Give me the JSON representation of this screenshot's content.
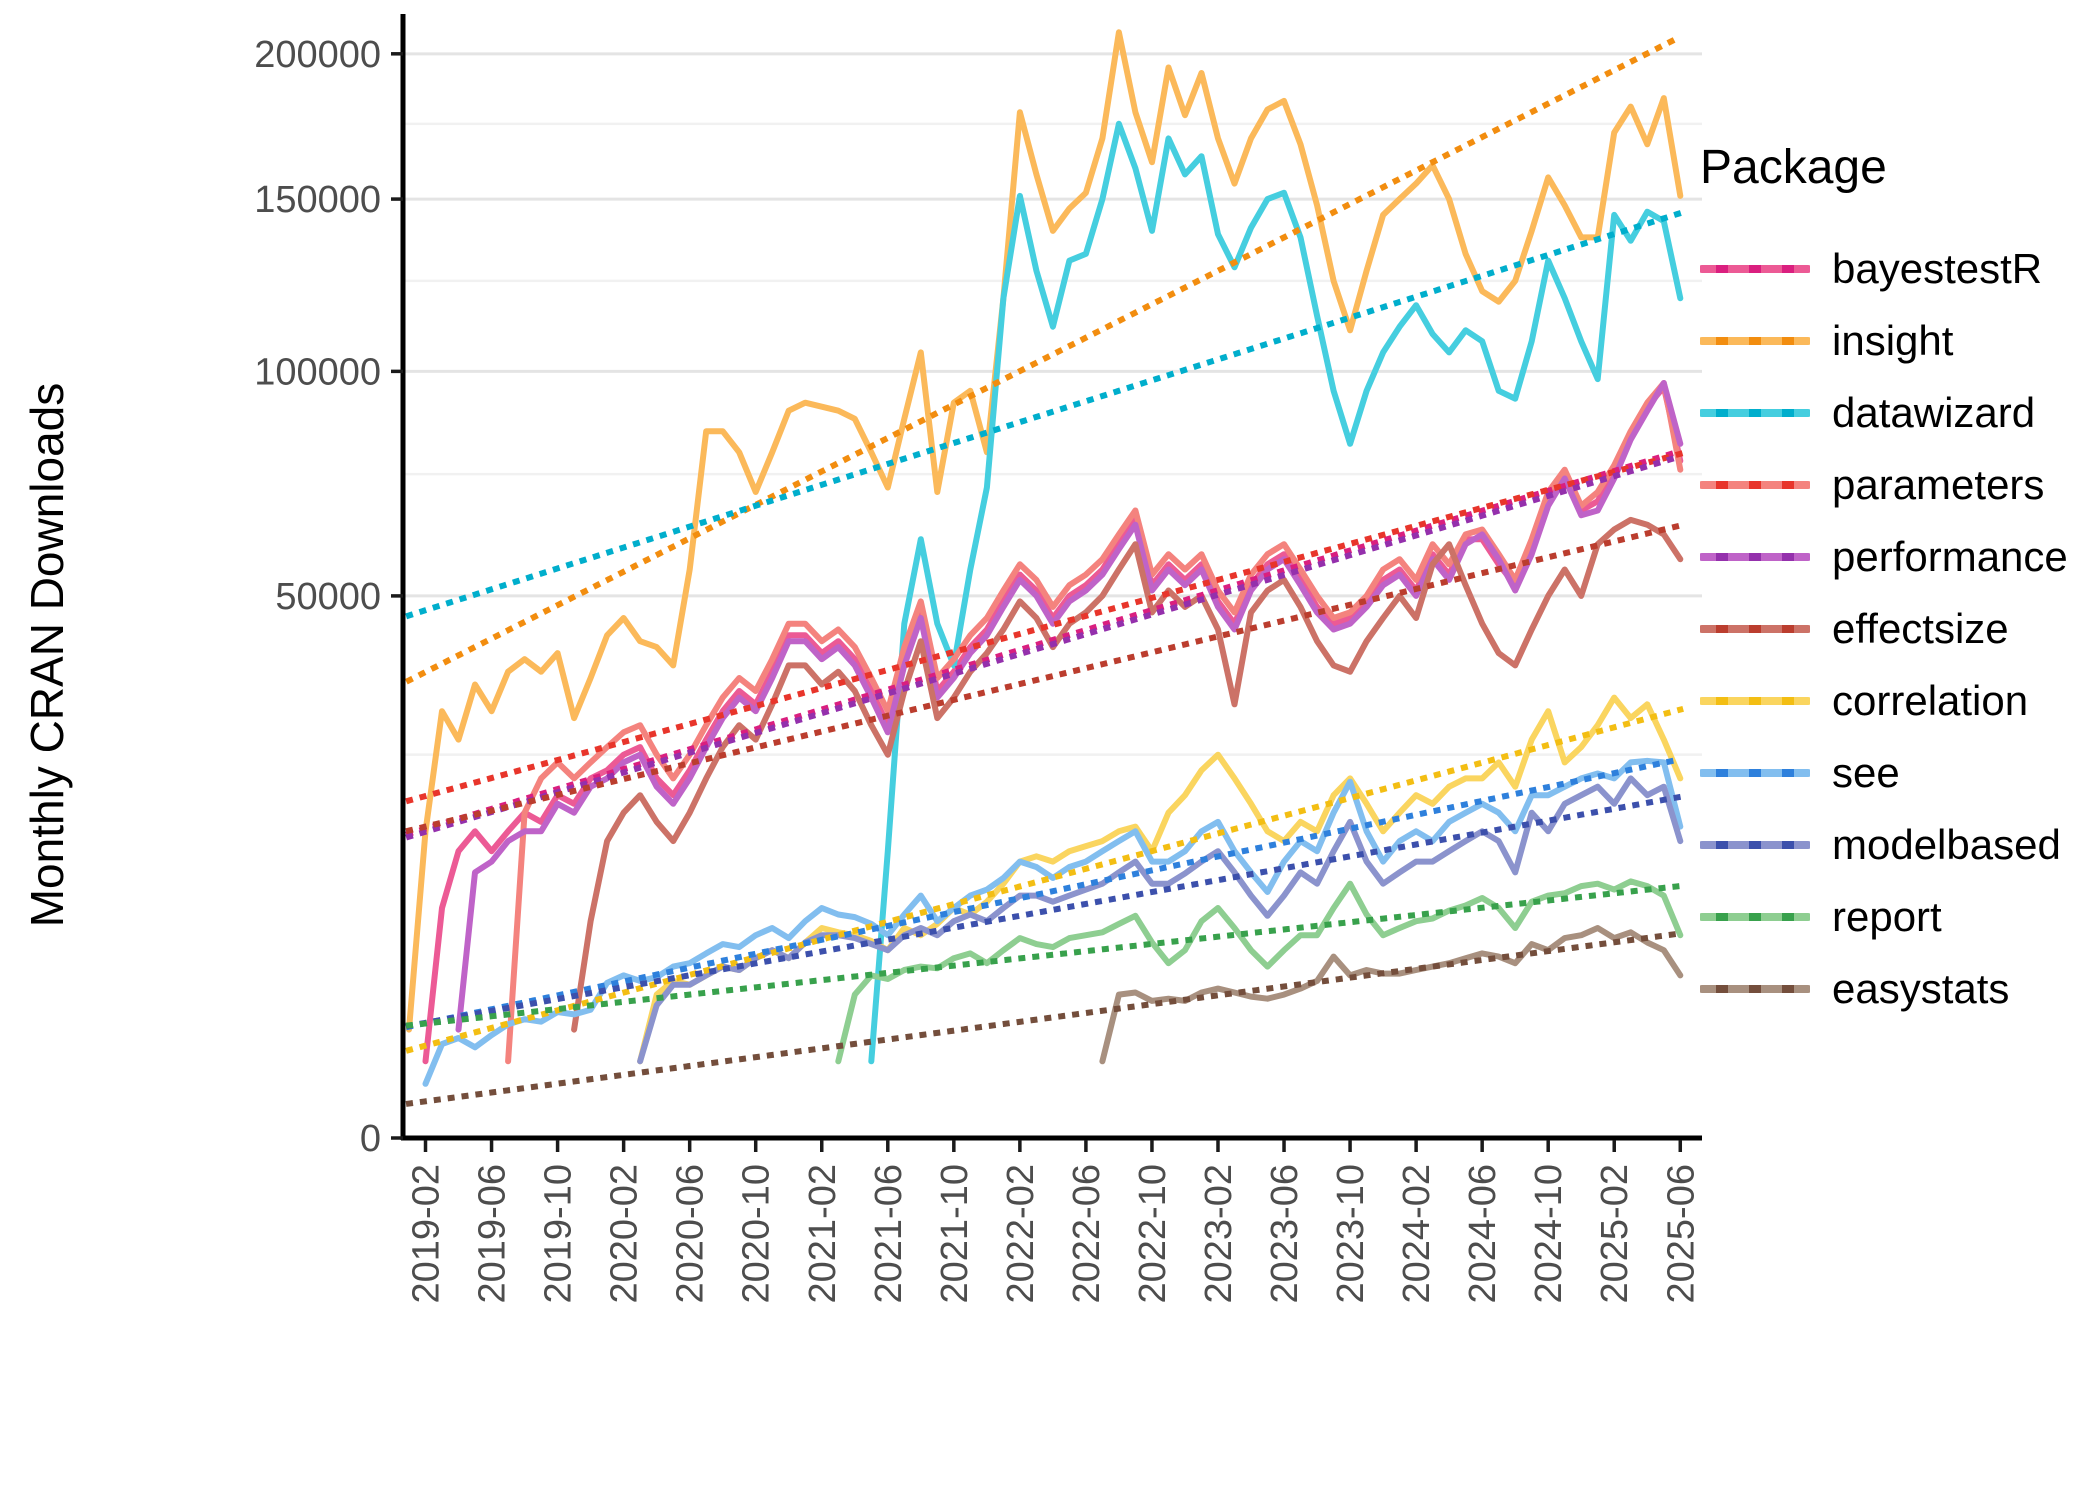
{
  "y_axis_title": "Monthly CRAN Downloads",
  "legend": {
    "title": "Package"
  },
  "chart_data": {
    "type": "line",
    "title": "",
    "xlabel": "",
    "ylabel": "Monthly CRAN Downloads",
    "x_start_month": "2019-01",
    "x_end_month": "2025-06",
    "months_total": 78,
    "y_scale": "sqrt",
    "y_ticks": [
      0,
      50000,
      100000,
      150000,
      200000
    ],
    "y_minor_ticks": [
      25000,
      75000,
      125000,
      175000
    ],
    "y_max_display": 215000,
    "x_tick_labels": [
      "2019-02",
      "2019-06",
      "2019-10",
      "2020-02",
      "2020-06",
      "2020-10",
      "2021-02",
      "2021-06",
      "2021-10",
      "2022-02",
      "2022-06",
      "2022-10",
      "2023-02",
      "2023-06",
      "2023-10",
      "2024-02",
      "2024-06",
      "2024-10",
      "2025-02",
      "2025-06"
    ],
    "x_tick_month_indices": [
      1,
      5,
      9,
      13,
      17,
      21,
      25,
      29,
      33,
      37,
      41,
      45,
      49,
      53,
      57,
      61,
      65,
      69,
      73,
      77
    ],
    "grid_color_major": "#e4e4e4",
    "grid_color_minor": "#f1f1f1",
    "axis_color": "#000000",
    "tick_label_color": "#4d4d4d",
    "note": "values_thousands are monthly download counts in thousands starting at start_month_index (0 = 2019-01); dotted trend lines are linear fits on the sqrt scale drawn over the full x range",
    "series": [
      {
        "name": "bayestestR",
        "color": "#EC5A95",
        "trend_color": "#DA1F7F",
        "start_month_index": 1,
        "values_thousands": [
          1,
          9,
          14,
          16,
          14,
          16,
          18,
          17,
          20,
          19,
          22,
          23,
          25,
          26,
          22,
          20,
          23,
          27,
          31,
          34,
          32,
          37,
          43,
          43,
          40,
          42,
          39,
          34,
          29,
          39,
          47,
          34,
          37,
          41,
          44,
          49,
          54,
          51,
          46,
          50,
          52,
          55,
          60,
          65,
          52,
          56,
          53,
          56,
          49,
          45,
          52,
          56,
          58,
          53,
          48,
          45,
          46,
          49,
          53,
          55,
          51,
          58,
          54,
          61,
          61,
          56,
          52,
          59,
          69,
          75,
          67,
          69,
          76,
          84,
          91,
          96,
          78
        ]
      },
      {
        "name": "insight",
        "color": "#FBB95A",
        "trend_color": "#F28D0F",
        "start_month_index": 0,
        "values_thousands": [
          2,
          16,
          31,
          27,
          35,
          31,
          37,
          39,
          37,
          40,
          30,
          36,
          43,
          46,
          42,
          41,
          38,
          55,
          85,
          85,
          80,
          71,
          80,
          90,
          92,
          91,
          90,
          88,
          80,
          72,
          88,
          105,
          71,
          92,
          95,
          80,
          120,
          179,
          158,
          140,
          147,
          152,
          170,
          208,
          179,
          162,
          195,
          178,
          193,
          170,
          155,
          170,
          180,
          183,
          168,
          148,
          125,
          111,
          128,
          145,
          150,
          155,
          161,
          150,
          133,
          122,
          119,
          125,
          140,
          157,
          148,
          138,
          138,
          172,
          181,
          168,
          184,
          151
        ]
      },
      {
        "name": "datawizard",
        "color": "#45CEDF",
        "trend_color": "#00AECC",
        "start_month_index": 28,
        "values_thousands": [
          1,
          14,
          45,
          61,
          45,
          38,
          55,
          72,
          120,
          151,
          128,
          112,
          131,
          133,
          150,
          175,
          160,
          140,
          170,
          158,
          164,
          139,
          129,
          141,
          150,
          152,
          138,
          115,
          95,
          82,
          95,
          105,
          112,
          118,
          110,
          105,
          111,
          108,
          95,
          93,
          108,
          131,
          120,
          108,
          98,
          145,
          137,
          146,
          143,
          120
        ]
      },
      {
        "name": "parameters",
        "color": "#F4837E",
        "trend_color": "#E8352B",
        "start_month_index": 6,
        "values_thousands": [
          1,
          18,
          22,
          24,
          22,
          24,
          26,
          28,
          29,
          25,
          22,
          25,
          29,
          33,
          36,
          34,
          39,
          45,
          45,
          42,
          44,
          41,
          36,
          31,
          41,
          49,
          36,
          39,
          43,
          46,
          51,
          56,
          53,
          48,
          52,
          54,
          57,
          62,
          67,
          54,
          58,
          55,
          58,
          51,
          47,
          54,
          58,
          60,
          55,
          50,
          46,
          47,
          50,
          55,
          57,
          53,
          60,
          56,
          62,
          63,
          58,
          53,
          61,
          71,
          76,
          68,
          71,
          77,
          85,
          92,
          97,
          76
        ]
      },
      {
        "name": "performance",
        "color": "#BF63C8",
        "trend_color": "#9430AC",
        "start_month_index": 3,
        "values_thousands": [
          2,
          12,
          13,
          15,
          16,
          16,
          19,
          18,
          21,
          22,
          24,
          25,
          21,
          19,
          22,
          26,
          30,
          33,
          31,
          36,
          42,
          42,
          39,
          41,
          38,
          33,
          28,
          38,
          46,
          33,
          36,
          40,
          43,
          48,
          53,
          50,
          45,
          49,
          51,
          54,
          59,
          64,
          51,
          55,
          52,
          55,
          48,
          44,
          51,
          55,
          57,
          52,
          47,
          44,
          45,
          48,
          52,
          54,
          50,
          57,
          53,
          60,
          62,
          57,
          51,
          58,
          68,
          74,
          66,
          67,
          74,
          83,
          90,
          97,
          82
        ]
      },
      {
        "name": "effectsize",
        "color": "#CC7267",
        "trend_color": "#BB3D2E",
        "start_month_index": 10,
        "values_thousands": [
          2,
          8,
          15,
          18,
          20,
          17,
          15,
          18,
          22,
          26,
          29,
          27,
          32,
          38,
          38,
          35,
          37,
          34,
          29,
          25,
          34,
          42,
          30,
          33,
          37,
          40,
          44,
          49,
          46,
          41,
          45,
          47,
          50,
          55,
          60,
          47,
          51,
          48,
          50,
          44,
          32,
          47,
          51,
          53,
          48,
          42,
          38,
          37,
          42,
          46,
          50,
          46,
          56,
          60,
          52,
          45,
          40,
          38,
          44,
          50,
          55,
          50,
          60,
          63,
          65,
          64,
          62,
          57
        ]
      },
      {
        "name": "correlation",
        "color": "#FAD55F",
        "trend_color": "#F3BE13",
        "start_month_index": 14,
        "values_thousands": [
          1,
          3.5,
          4.2,
          4,
          4.5,
          5,
          4.8,
          5.5,
          6,
          5.5,
          6.5,
          7.5,
          7.2,
          7,
          6.6,
          6,
          7.5,
          7,
          7.8,
          9,
          8.5,
          9.5,
          11,
          13,
          13.5,
          13,
          14,
          14.5,
          15,
          16,
          16.5,
          14,
          18,
          20,
          23,
          25,
          22,
          19,
          16,
          15,
          17,
          16,
          20,
          22,
          19,
          16,
          18,
          20,
          19,
          21,
          22,
          22,
          24,
          21,
          27,
          31,
          24,
          26,
          29,
          33,
          30,
          32,
          27,
          22
        ]
      },
      {
        "name": "see",
        "color": "#82BEEF",
        "trend_color": "#2E80DC",
        "start_month_index": 1,
        "values_thousands": [
          0.5,
          1.5,
          1.7,
          1.4,
          1.8,
          2.2,
          2.4,
          2.3,
          2.7,
          2.6,
          2.8,
          4.1,
          4.5,
          4.2,
          4.4,
          5,
          5.2,
          5.8,
          6.4,
          6.2,
          7,
          7.5,
          6.8,
          8,
          9,
          8.5,
          8.3,
          7.8,
          7,
          8.5,
          10,
          8,
          9,
          10,
          10.5,
          11.5,
          13,
          12.5,
          11.5,
          12.5,
          13,
          14,
          15,
          16,
          13,
          13,
          14,
          16,
          17,
          14,
          12,
          10.3,
          13,
          15,
          14,
          18,
          21.6,
          16,
          13,
          15,
          16,
          15,
          17,
          18,
          19,
          18,
          16,
          20,
          20,
          21,
          22,
          22.6,
          22,
          24,
          24.2,
          24,
          16.5
        ]
      },
      {
        "name": "modelbased",
        "color": "#8B93CD",
        "trend_color": "#3C50AC",
        "start_month_index": 14,
        "values_thousands": [
          1,
          3,
          4,
          4,
          4.5,
          5,
          4.8,
          5.5,
          6,
          5.5,
          6.5,
          7,
          7,
          6.8,
          6.4,
          6,
          7,
          7.5,
          7,
          8,
          8.5,
          8,
          9,
          10,
          10,
          9.5,
          10,
          10.5,
          11,
          12,
          13,
          11,
          11,
          11.9,
          13,
          14,
          12,
          10,
          8.4,
          10,
          12,
          11,
          14,
          17,
          13,
          11,
          12,
          13,
          13,
          14,
          15,
          16,
          15,
          12,
          18,
          16,
          19,
          20,
          21,
          19,
          22,
          20,
          21,
          15
        ]
      },
      {
        "name": "report",
        "color": "#8ECE91",
        "trend_color": "#38A14C",
        "start_month_index": 26,
        "values_thousands": [
          1,
          3.5,
          4.5,
          4.3,
          4.8,
          5,
          4.9,
          5.5,
          5.8,
          5.2,
          6,
          6.8,
          6.4,
          6.2,
          6.8,
          7,
          7.2,
          7.8,
          8.4,
          6.5,
          5.2,
          6,
          8,
          9,
          7.5,
          6,
          5,
          6,
          7,
          7,
          9,
          11,
          8.5,
          7,
          7.5,
          8,
          8.2,
          8.8,
          9.2,
          9.8,
          9,
          7.5,
          9.5,
          10,
          10.2,
          10.8,
          11,
          10.5,
          11.2,
          10.8,
          10,
          7
        ]
      },
      {
        "name": "easystats",
        "color": "#A8907F",
        "trend_color": "#744E3C",
        "start_month_index": 42,
        "values_thousands": [
          1,
          3.5,
          3.6,
          3.2,
          3.3,
          3.2,
          3.6,
          3.8,
          3.6,
          3.4,
          3.3,
          3.5,
          3.8,
          4.2,
          5.6,
          4.5,
          4.8,
          4.6,
          4.6,
          4.8,
          5,
          5.2,
          5.5,
          5.8,
          5.6,
          5.2,
          6.4,
          6,
          6.8,
          7,
          7.5,
          6.8,
          7.2,
          6.5,
          6,
          4.5
        ]
      }
    ]
  }
}
